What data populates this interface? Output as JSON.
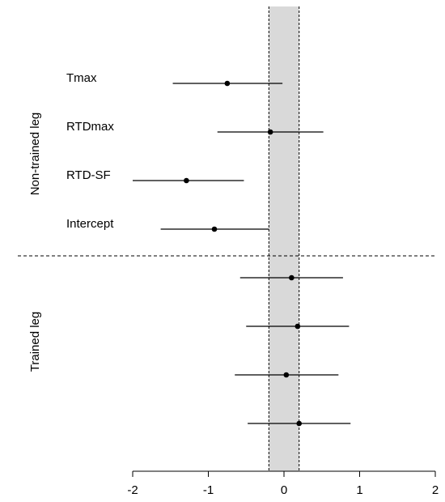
{
  "chart_data": {
    "type": "forest",
    "xlim": [
      -2,
      2
    ],
    "x_ticks": [
      -2,
      -1,
      0,
      1,
      2
    ],
    "x_tick_labels": [
      "-2",
      "-1",
      "0",
      "1",
      "2"
    ],
    "reference_band": {
      "lower": -0.2,
      "upper": 0.2
    },
    "groups": [
      {
        "label": "Non-trained leg",
        "rows": [
          {
            "label": "Tmax",
            "estimate": -0.75,
            "ci_lower": -1.47,
            "ci_upper": -0.02
          },
          {
            "label": "RTDmax",
            "estimate": -0.18,
            "ci_lower": -0.88,
            "ci_upper": 0.52
          },
          {
            "label": "RTD-SF",
            "estimate": -1.29,
            "ci_lower": -2.0,
            "ci_upper": -0.53
          },
          {
            "label": "Intercept",
            "estimate": -0.92,
            "ci_lower": -1.63,
            "ci_upper": -0.2
          }
        ]
      },
      {
        "label": "Trained leg",
        "rows": [
          {
            "label": "",
            "estimate": 0.1,
            "ci_lower": -0.58,
            "ci_upper": 0.78
          },
          {
            "label": "",
            "estimate": 0.18,
            "ci_lower": -0.5,
            "ci_upper": 0.86
          },
          {
            "label": "",
            "estimate": 0.03,
            "ci_lower": -0.65,
            "ci_upper": 0.72
          },
          {
            "label": "",
            "estimate": 0.2,
            "ci_lower": -0.48,
            "ci_upper": 0.88
          }
        ]
      }
    ],
    "group_separator": "dashed",
    "grid": false
  },
  "colors": {
    "band_fill": "#d9d9d9",
    "line": "#000000",
    "point": "#000000"
  }
}
